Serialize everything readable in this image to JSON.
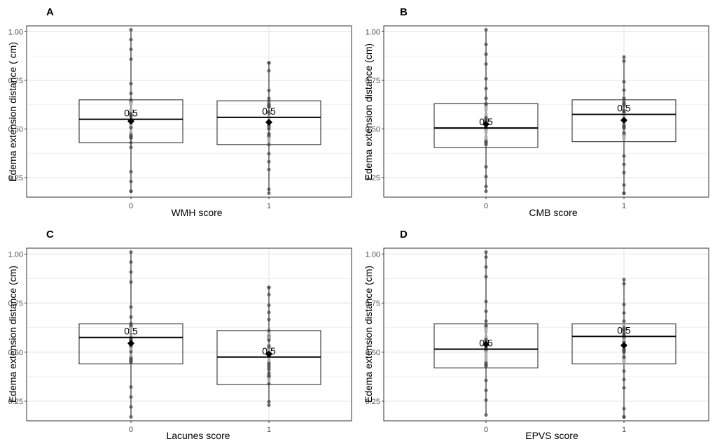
{
  "chart_data": [
    {
      "type": "box",
      "panel": "A",
      "xlabel": "WMH score",
      "ylabel": "Edema extension distance ( cm)",
      "categories": [
        "0",
        "1"
      ],
      "ylim": [
        0.15,
        1.03
      ],
      "yticks": [
        "0.25",
        "0.50",
        "0.75",
        "1.00"
      ],
      "boxes": [
        {
          "q1": 0.43,
          "median": 0.55,
          "q3": 0.65,
          "min": 0.18,
          "max": 1.01,
          "mean": 0.54,
          "label": "0.5"
        },
        {
          "q1": 0.42,
          "median": 0.56,
          "q3": 0.645,
          "min": 0.17,
          "max": 0.84,
          "mean": 0.535,
          "label": "0.5"
        }
      ]
    },
    {
      "type": "box",
      "panel": "B",
      "xlabel": "CMB score",
      "ylabel": "Edema extension distance (cm)",
      "categories": [
        "0",
        "1"
      ],
      "ylim": [
        0.15,
        1.03
      ],
      "yticks": [
        "0.25",
        "0.50",
        "0.75",
        "1.00"
      ],
      "boxes": [
        {
          "q1": 0.405,
          "median": 0.505,
          "q3": 0.63,
          "min": 0.18,
          "max": 1.01,
          "mean": 0.525,
          "label": "0.5"
        },
        {
          "q1": 0.435,
          "median": 0.575,
          "q3": 0.65,
          "min": 0.17,
          "max": 0.87,
          "mean": 0.545,
          "label": "0.5"
        }
      ]
    },
    {
      "type": "box",
      "panel": "C",
      "xlabel": "Lacunes score",
      "ylabel": "Edema extension distance (cm)",
      "categories": [
        "0",
        "1"
      ],
      "ylim": [
        0.15,
        1.03
      ],
      "yticks": [
        "0.25",
        "0.50",
        "0.75",
        "1.00"
      ],
      "boxes": [
        {
          "q1": 0.44,
          "median": 0.575,
          "q3": 0.645,
          "min": 0.17,
          "max": 1.01,
          "mean": 0.545,
          "label": "0.5"
        },
        {
          "q1": 0.335,
          "median": 0.475,
          "q3": 0.61,
          "min": 0.23,
          "max": 0.83,
          "mean": 0.49,
          "label": "0.5"
        }
      ]
    },
    {
      "type": "box",
      "panel": "D",
      "xlabel": "EPVS score",
      "ylabel": "Edema extension distance (cm)",
      "categories": [
        "0",
        "1"
      ],
      "ylim": [
        0.15,
        1.03
      ],
      "yticks": [
        "0.25",
        "0.50",
        "0.75",
        "1.00"
      ],
      "boxes": [
        {
          "q1": 0.42,
          "median": 0.515,
          "q3": 0.645,
          "min": 0.18,
          "max": 1.01,
          "mean": 0.54,
          "label": "0.5"
        },
        {
          "q1": 0.44,
          "median": 0.58,
          "q3": 0.645,
          "min": 0.17,
          "max": 0.87,
          "mean": 0.535,
          "label": "0.5"
        }
      ]
    }
  ]
}
